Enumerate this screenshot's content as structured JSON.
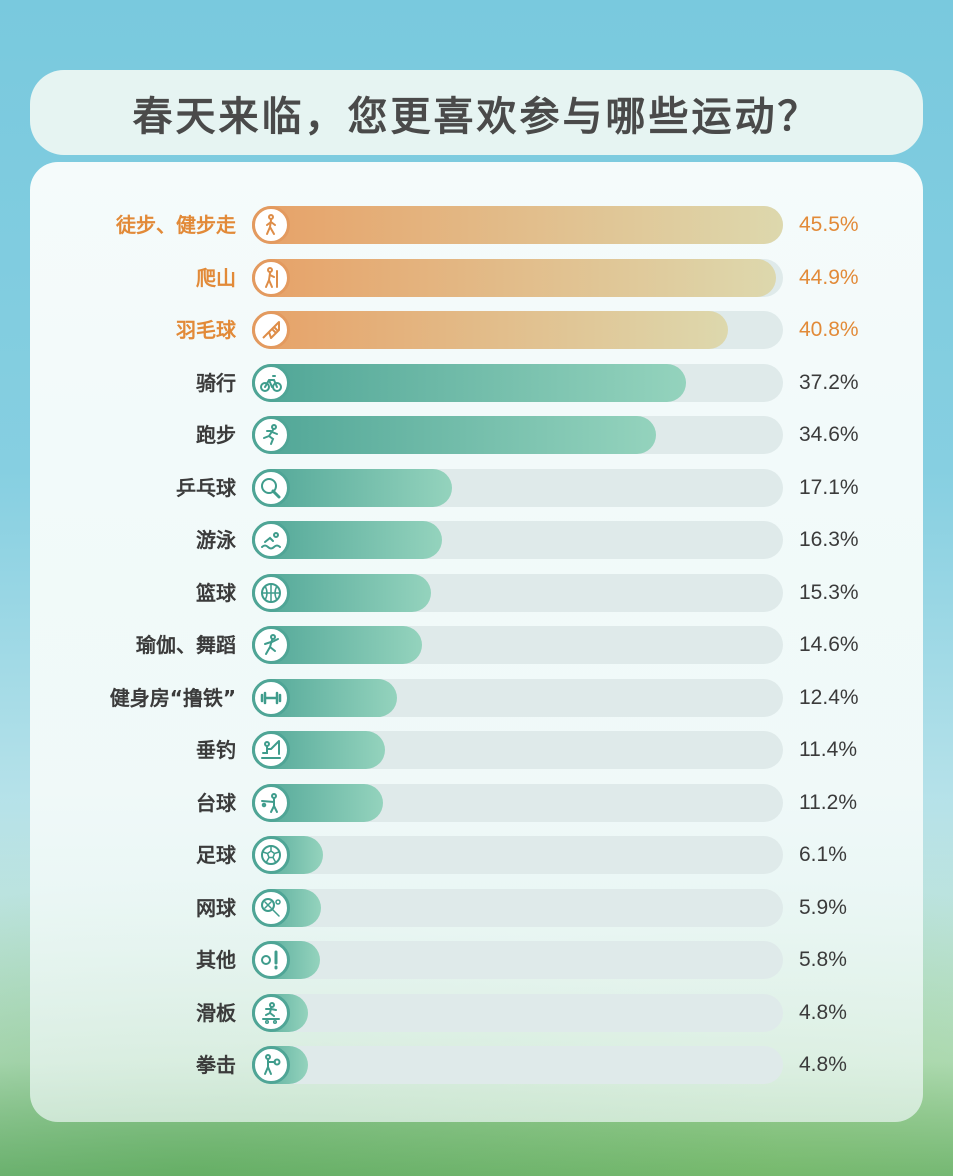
{
  "title": "春天来临，您更喜欢参与哪些运动？",
  "colors": {
    "highlight": "#e28a38",
    "primary": "#4fa596",
    "track": "#dfeaea"
  },
  "chart_data": {
    "type": "bar",
    "orientation": "horizontal",
    "title": "春天来临，您更喜欢参与哪些运动？",
    "xlim": [
      0,
      45.5
    ],
    "grid": false,
    "categories": [
      "徒步、健步走",
      "爬山",
      "羽毛球",
      "骑行",
      "跑步",
      "乒乓球",
      "游泳",
      "篮球",
      "瑜伽、舞蹈",
      "健身房“撸铁”",
      "垂钓",
      "台球",
      "足球",
      "网球",
      "其他",
      "滑板",
      "拳击"
    ],
    "values": [
      45.5,
      44.9,
      40.8,
      37.2,
      34.6,
      17.1,
      16.3,
      15.3,
      14.6,
      12.4,
      11.4,
      11.2,
      6.1,
      5.9,
      5.8,
      4.8,
      4.8
    ],
    "value_labels": [
      "45.5%",
      "44.9%",
      "40.8%",
      "37.2%",
      "34.6%",
      "17.1%",
      "16.3%",
      "15.3%",
      "14.6%",
      "12.4%",
      "11.4%",
      "11.2%",
      "6.1%",
      "5.9%",
      "5.8%",
      "4.8%",
      "4.8%"
    ],
    "highlighted": [
      true,
      true,
      true,
      false,
      false,
      false,
      false,
      false,
      false,
      false,
      false,
      false,
      false,
      false,
      false,
      false,
      false
    ],
    "icons": [
      "walking-icon",
      "hiking-icon",
      "badminton-icon",
      "cycling-icon",
      "running-icon",
      "ping-pong-icon",
      "swimming-icon",
      "basketball-icon",
      "dance-icon",
      "dumbbell-icon",
      "fishing-icon",
      "billiards-icon",
      "soccer-icon",
      "tennis-icon",
      "other-sports-icon",
      "skateboard-icon",
      "boxing-icon"
    ]
  }
}
